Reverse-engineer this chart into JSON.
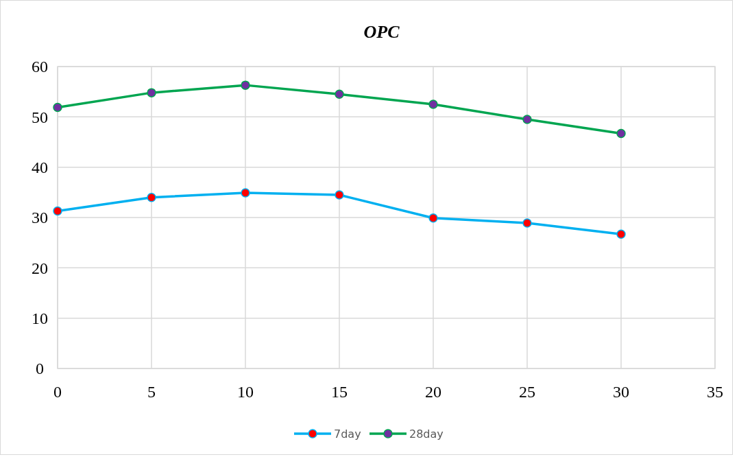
{
  "chart_data": {
    "type": "line",
    "title": "OPC",
    "x": [
      0,
      5,
      10,
      15,
      20,
      25,
      30
    ],
    "series": [
      {
        "name": "7day",
        "color": "#00b0f0",
        "values": [
          31.3,
          34.0,
          34.9,
          34.5,
          29.9,
          28.9,
          26.7
        ]
      },
      {
        "name": "28day",
        "color": "#00a550",
        "values": [
          51.9,
          54.8,
          56.3,
          54.5,
          52.5,
          49.5,
          46.7
        ]
      }
    ],
    "xlim": [
      0,
      35
    ],
    "xticks": [
      0,
      5,
      10,
      15,
      20,
      25,
      30,
      35
    ],
    "ylim": [
      0,
      60
    ],
    "yticks": [
      0,
      10,
      20,
      30,
      40,
      50,
      60
    ],
    "grid": true,
    "legend": "bottom",
    "marker": "circle",
    "line_style": "solid"
  }
}
